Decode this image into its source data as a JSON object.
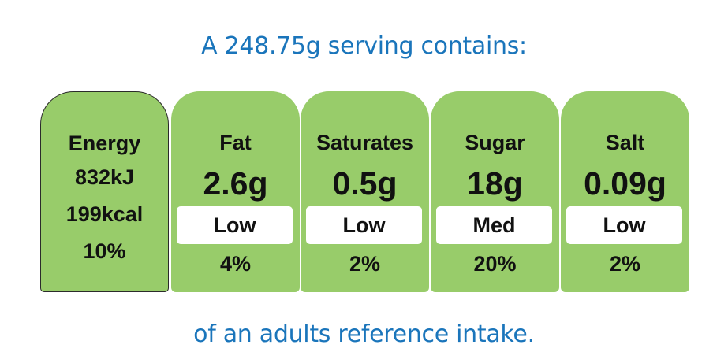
{
  "header": {
    "text": "A 248.75g serving contains:"
  },
  "footer": {
    "text": "of an adults reference intake."
  },
  "energy": {
    "label": "Energy",
    "kj": "832kJ",
    "kcal": "199kcal",
    "percent": "10%"
  },
  "nutrients": [
    {
      "label": "Fat",
      "amount": "2.6g",
      "level": "Low",
      "percent": "4%"
    },
    {
      "label": "Saturates",
      "amount": "0.5g",
      "level": "Low",
      "percent": "2%"
    },
    {
      "label": "Sugar",
      "amount": "18g",
      "level": "Med",
      "percent": "20%"
    },
    {
      "label": "Salt",
      "amount": "0.09g",
      "level": "Low",
      "percent": "2%"
    }
  ],
  "colors": {
    "card_green": "#98cc6a",
    "heading_blue": "#1a75bb",
    "level_box": "#ffffff"
  }
}
